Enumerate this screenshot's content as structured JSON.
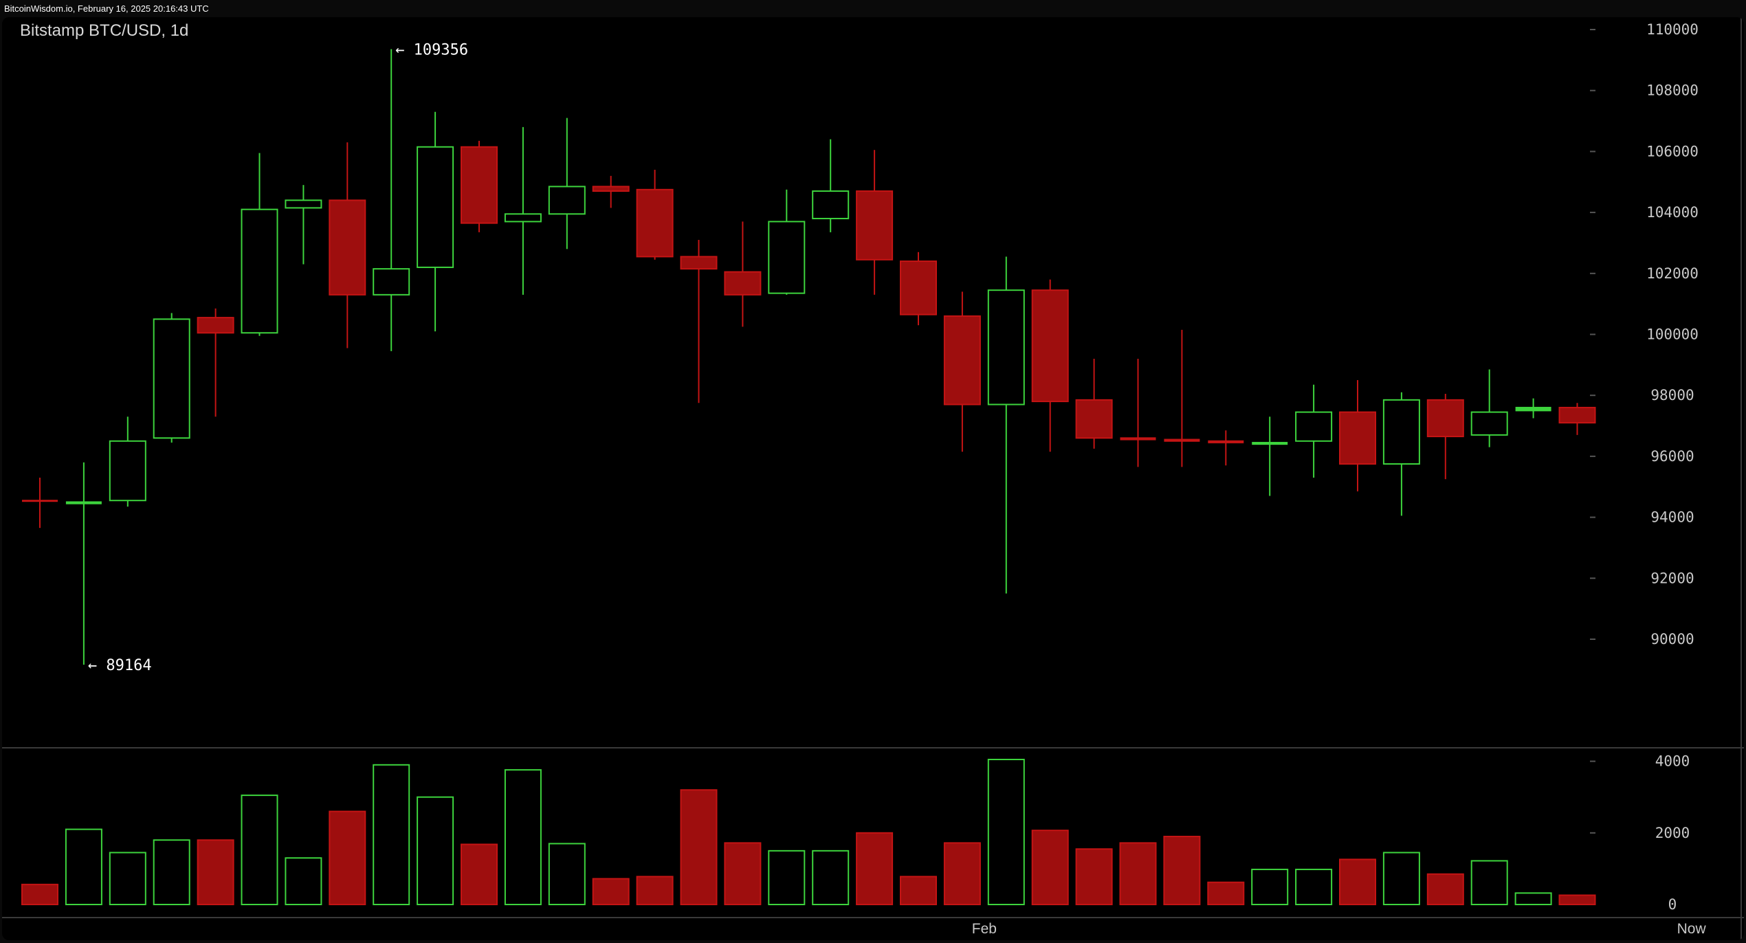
{
  "header": {
    "text": "BitcoinWisdom.io, February 16, 2025 20:16:43 UTC"
  },
  "chart_data": {
    "type": "candlestick",
    "title": "Bitstamp BTC/USD, 1d",
    "price_axis": {
      "ticks": [
        110000,
        108000,
        106000,
        104000,
        102000,
        100000,
        98000,
        96000,
        94000,
        92000,
        90000
      ],
      "range": [
        88000,
        111000
      ]
    },
    "volume_axis": {
      "ticks": [
        4000,
        2000,
        0
      ],
      "range": [
        0,
        4000
      ]
    },
    "x_labels": [
      {
        "label": "Feb",
        "index": 21.5
      },
      {
        "label": "Now",
        "index": 37.6
      }
    ],
    "annotations": [
      {
        "text": "← 109356",
        "index": 8,
        "price": 109356
      },
      {
        "text": "← 89164",
        "index": 1,
        "price": 89164
      }
    ],
    "colors": {
      "up": "#3dd43d",
      "down": "#c41414",
      "down_fill": "#9e0e0e",
      "background": "#000000"
    },
    "candles": [
      {
        "o": 94550,
        "h": 95300,
        "l": 93650,
        "c": 94550,
        "v": 560,
        "dir": "down"
      },
      {
        "o": 94450,
        "h": 95800,
        "l": 89164,
        "c": 94500,
        "v": 2100,
        "dir": "up"
      },
      {
        "o": 94550,
        "h": 97300,
        "l": 94350,
        "c": 96500,
        "v": 1450,
        "dir": "up"
      },
      {
        "o": 96600,
        "h": 100700,
        "l": 96450,
        "c": 100500,
        "v": 1800,
        "dir": "up"
      },
      {
        "o": 100550,
        "h": 100850,
        "l": 97300,
        "c": 100050,
        "v": 1800,
        "dir": "down"
      },
      {
        "o": 100050,
        "h": 105950,
        "l": 99950,
        "c": 104100,
        "v": 3050,
        "dir": "up"
      },
      {
        "o": 104150,
        "h": 104900,
        "l": 102300,
        "c": 104400,
        "v": 1300,
        "dir": "up"
      },
      {
        "o": 104400,
        "h": 106300,
        "l": 99550,
        "c": 101300,
        "v": 2600,
        "dir": "down"
      },
      {
        "o": 101300,
        "h": 109356,
        "l": 99450,
        "c": 102150,
        "v": 3900,
        "dir": "up"
      },
      {
        "o": 102200,
        "h": 107300,
        "l": 100100,
        "c": 106150,
        "v": 3000,
        "dir": "up"
      },
      {
        "o": 106150,
        "h": 106350,
        "l": 103350,
        "c": 103650,
        "v": 1680,
        "dir": "down"
      },
      {
        "o": 103700,
        "h": 106800,
        "l": 101300,
        "c": 103950,
        "v": 3760,
        "dir": "up"
      },
      {
        "o": 103950,
        "h": 107100,
        "l": 102800,
        "c": 104850,
        "v": 1700,
        "dir": "up"
      },
      {
        "o": 104850,
        "h": 105200,
        "l": 104150,
        "c": 104700,
        "v": 720,
        "dir": "down"
      },
      {
        "o": 104750,
        "h": 105400,
        "l": 102450,
        "c": 102550,
        "v": 780,
        "dir": "down"
      },
      {
        "o": 102550,
        "h": 103100,
        "l": 97750,
        "c": 102150,
        "v": 3200,
        "dir": "down"
      },
      {
        "o": 102050,
        "h": 103700,
        "l": 100250,
        "c": 101300,
        "v": 1720,
        "dir": "down"
      },
      {
        "o": 101350,
        "h": 104750,
        "l": 101300,
        "c": 103700,
        "v": 1500,
        "dir": "up"
      },
      {
        "o": 103800,
        "h": 106400,
        "l": 103350,
        "c": 104700,
        "v": 1500,
        "dir": "up"
      },
      {
        "o": 104700,
        "h": 106050,
        "l": 101300,
        "c": 102450,
        "v": 2000,
        "dir": "down"
      },
      {
        "o": 102400,
        "h": 102700,
        "l": 100300,
        "c": 100650,
        "v": 780,
        "dir": "down"
      },
      {
        "o": 100600,
        "h": 101400,
        "l": 96150,
        "c": 97700,
        "v": 1720,
        "dir": "down"
      },
      {
        "o": 97700,
        "h": 102550,
        "l": 91500,
        "c": 101450,
        "v": 4050,
        "dir": "up"
      },
      {
        "o": 101450,
        "h": 101800,
        "l": 96150,
        "c": 97800,
        "v": 2070,
        "dir": "down"
      },
      {
        "o": 97850,
        "h": 99200,
        "l": 96250,
        "c": 96600,
        "v": 1550,
        "dir": "down"
      },
      {
        "o": 96600,
        "h": 99200,
        "l": 95650,
        "c": 96550,
        "v": 1720,
        "dir": "down"
      },
      {
        "o": 96550,
        "h": 100150,
        "l": 95650,
        "c": 96500,
        "v": 1900,
        "dir": "down"
      },
      {
        "o": 96500,
        "h": 96850,
        "l": 95700,
        "c": 96450,
        "v": 620,
        "dir": "down"
      },
      {
        "o": 96400,
        "h": 97300,
        "l": 94700,
        "c": 96450,
        "v": 980,
        "dir": "up"
      },
      {
        "o": 96500,
        "h": 98350,
        "l": 95300,
        "c": 97450,
        "v": 980,
        "dir": "up"
      },
      {
        "o": 97450,
        "h": 98500,
        "l": 94850,
        "c": 95750,
        "v": 1260,
        "dir": "down"
      },
      {
        "o": 95750,
        "h": 98100,
        "l": 94050,
        "c": 97850,
        "v": 1450,
        "dir": "up"
      },
      {
        "o": 97850,
        "h": 98050,
        "l": 95250,
        "c": 96650,
        "v": 850,
        "dir": "down"
      },
      {
        "o": 96700,
        "h": 98850,
        "l": 96300,
        "c": 97450,
        "v": 1220,
        "dir": "up"
      },
      {
        "o": 97500,
        "h": 97900,
        "l": 97250,
        "c": 97600,
        "v": 320,
        "dir": "up"
      },
      {
        "o": 97600,
        "h": 97750,
        "l": 96700,
        "c": 97100,
        "v": 260,
        "dir": "down"
      }
    ]
  }
}
